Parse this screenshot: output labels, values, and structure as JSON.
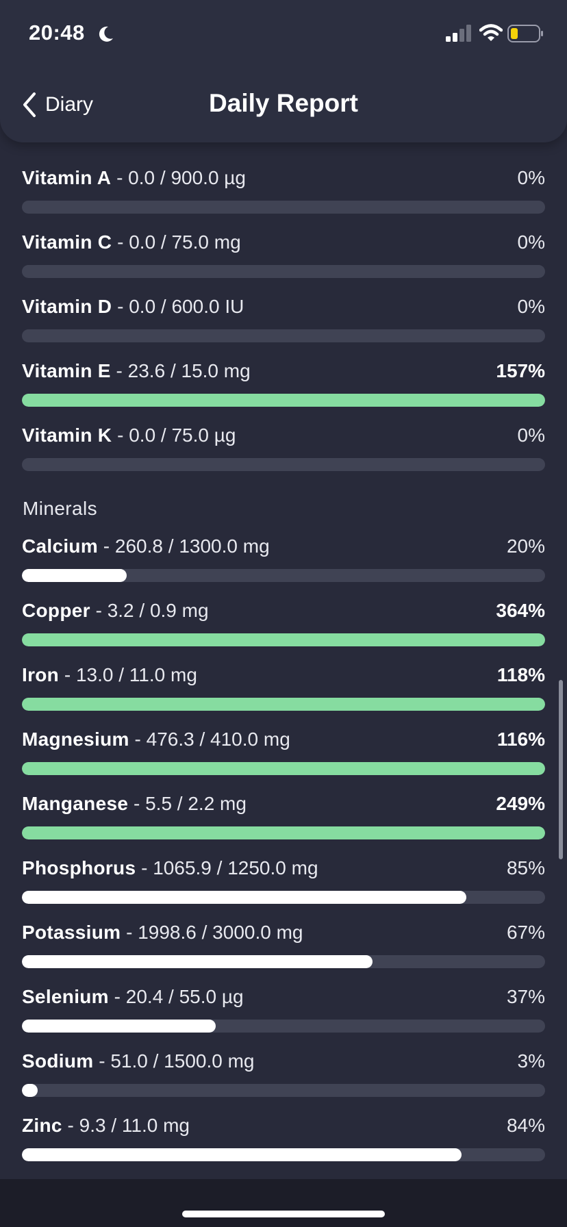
{
  "status_bar": {
    "time": "20:48",
    "moon_icon": "moon-icon",
    "signal_icon": "cellular-signal-icon",
    "wifi_icon": "wifi-icon",
    "battery_icon": "battery-icon",
    "battery_color": "#f5d20a"
  },
  "header": {
    "back_label": "Diary",
    "back_icon": "chevron-left-icon",
    "title": "Daily Report"
  },
  "colors": {
    "background": "#282a3a",
    "track": "#404354",
    "fill_normal": "#ffffff",
    "fill_over": "#86dca0"
  },
  "vitamins": [
    {
      "name": "Vitamin A",
      "detail": " - 0.0 / 900.0 µg",
      "percent": "0%",
      "progress": 0.0,
      "over": false
    },
    {
      "name": "Vitamin C",
      "detail": " - 0.0 / 75.0 mg",
      "percent": "0%",
      "progress": 0.0,
      "over": false
    },
    {
      "name": "Vitamin D",
      "detail": " - 0.0 / 600.0 IU",
      "percent": "0%",
      "progress": 0.0,
      "over": false
    },
    {
      "name": "Vitamin E",
      "detail": " - 23.6 / 15.0 mg",
      "percent": "157%",
      "progress": 1.0,
      "over": true
    },
    {
      "name": "Vitamin K",
      "detail": " - 0.0 / 75.0 µg",
      "percent": "0%",
      "progress": 0.0,
      "over": false
    }
  ],
  "minerals_title": "Minerals",
  "minerals": [
    {
      "name": "Calcium",
      "detail": " - 260.8 / 1300.0 mg",
      "percent": "20%",
      "progress": 0.2,
      "over": false
    },
    {
      "name": "Copper",
      "detail": " - 3.2 / 0.9 mg",
      "percent": "364%",
      "progress": 1.0,
      "over": true
    },
    {
      "name": "Iron",
      "detail": " - 13.0 / 11.0 mg",
      "percent": "118%",
      "progress": 1.0,
      "over": true
    },
    {
      "name": "Magnesium",
      "detail": " - 476.3 / 410.0 mg",
      "percent": "116%",
      "progress": 1.0,
      "over": true
    },
    {
      "name": "Manganese",
      "detail": " - 5.5 / 2.2 mg",
      "percent": "249%",
      "progress": 1.0,
      "over": true
    },
    {
      "name": "Phosphorus",
      "detail": " - 1065.9 / 1250.0 mg",
      "percent": "85%",
      "progress": 0.85,
      "over": false
    },
    {
      "name": "Potassium",
      "detail": " - 1998.6 / 3000.0 mg",
      "percent": "67%",
      "progress": 0.67,
      "over": false
    },
    {
      "name": "Selenium",
      "detail": " - 20.4 / 55.0 µg",
      "percent": "37%",
      "progress": 0.37,
      "over": false
    },
    {
      "name": "Sodium",
      "detail": " - 51.0 / 1500.0 mg",
      "percent": "3%",
      "progress": 0.03,
      "over": false
    },
    {
      "name": "Zinc",
      "detail": " - 9.3 / 11.0 mg",
      "percent": "84%",
      "progress": 0.84,
      "over": false
    }
  ]
}
